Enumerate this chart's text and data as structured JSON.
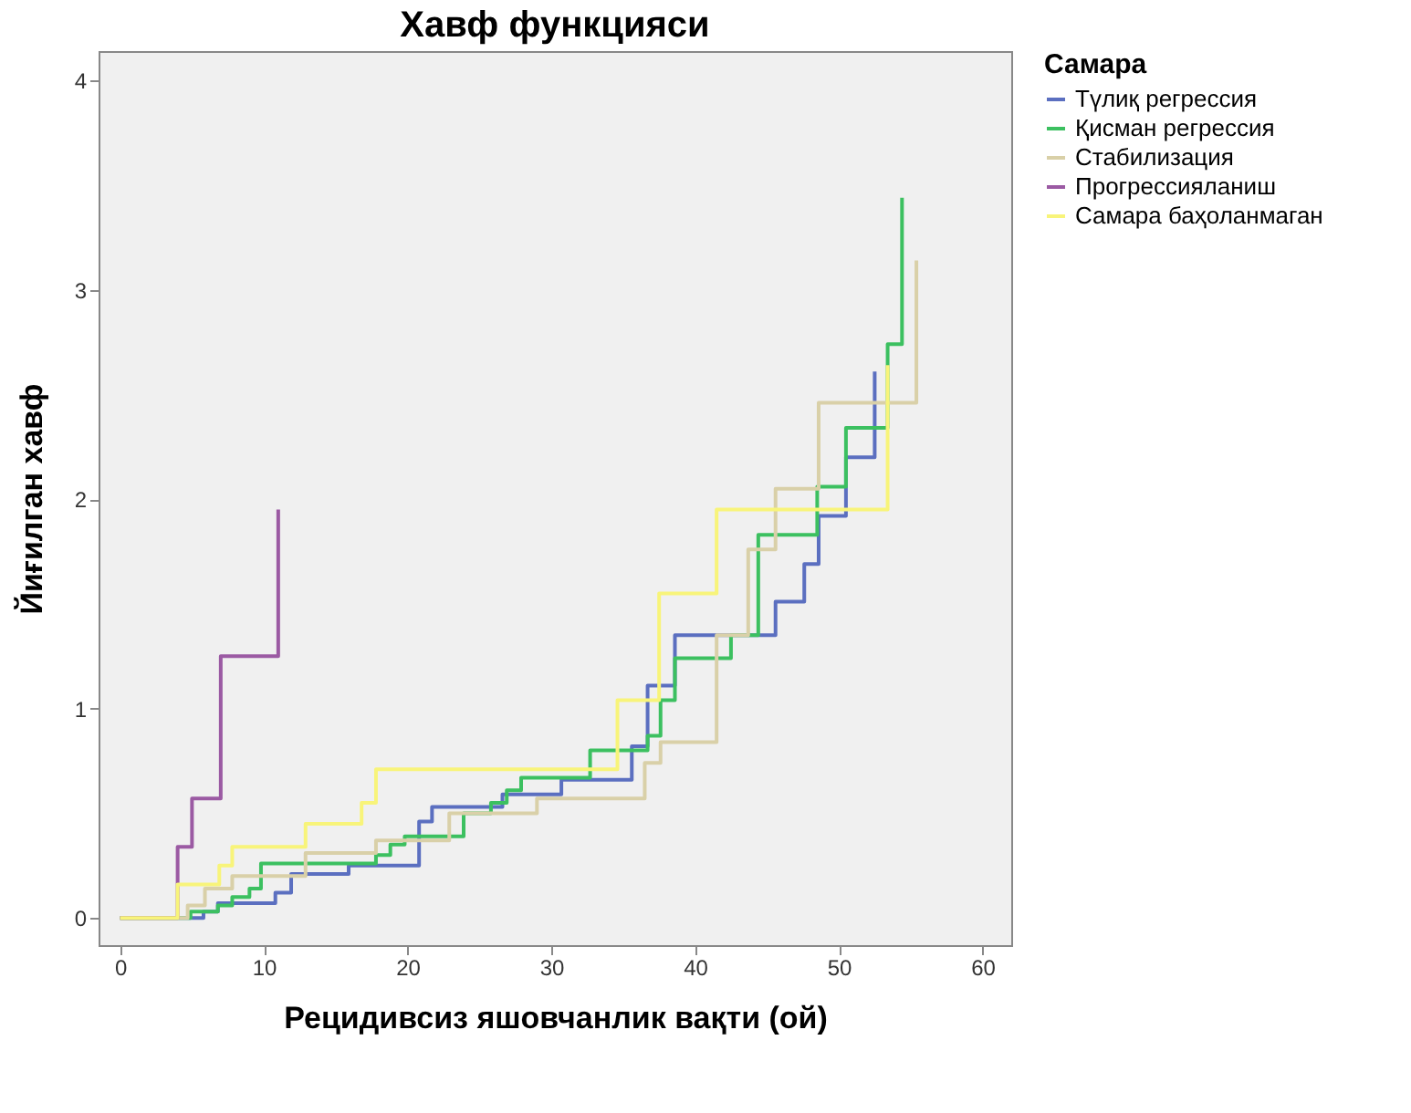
{
  "chart_data": {
    "type": "step",
    "title": "Хавф функцияси",
    "xlabel": "Рецидивсиз яшовчанлик вақти (ой)",
    "ylabel": "Йиғилган хавф",
    "legend_title": "Самара",
    "legend": "right",
    "grid": false,
    "xlim": [
      -1.5,
      62
    ],
    "xticks": [
      0,
      10,
      20,
      30,
      40,
      50,
      60
    ],
    "ylim": [
      -0.13,
      4.14
    ],
    "yticks": [
      0,
      1,
      2,
      3,
      4
    ],
    "series": [
      {
        "name": "Түлиқ регрессия",
        "color": "#5b6fc0",
        "x": [
          0,
          5.8,
          6.8,
          10.8,
          11.9,
          15.9,
          20.8,
          21.7,
          26.6,
          30.7,
          35.6,
          36.7,
          38.6,
          45.6,
          47.6,
          48.6,
          50.5,
          52.5
        ],
        "values": [
          0,
          0.03,
          0.07,
          0.12,
          0.21,
          0.25,
          0.46,
          0.53,
          0.59,
          0.66,
          0.82,
          1.11,
          1.35,
          1.51,
          1.69,
          1.92,
          2.2,
          2.61
        ]
      },
      {
        "name": "Қисман регрессия",
        "color": "#3cc060",
        "x": [
          0,
          4.9,
          6.8,
          7.8,
          9.0,
          9.8,
          17.8,
          18.8,
          19.8,
          23.9,
          25.8,
          26.9,
          27.9,
          32.7,
          36.7,
          37.6,
          38.6,
          42.5,
          44.4,
          48.5,
          50.5,
          53.4,
          54.4
        ],
        "values": [
          0,
          0.03,
          0.06,
          0.1,
          0.14,
          0.26,
          0.3,
          0.35,
          0.39,
          0.5,
          0.55,
          0.61,
          0.67,
          0.8,
          0.87,
          1.04,
          1.24,
          1.35,
          1.83,
          2.06,
          2.34,
          2.74,
          3.44
        ]
      },
      {
        "name": "Стабилизация",
        "color": "#d9d0a8",
        "x": [
          0,
          4.7,
          5.9,
          7.8,
          12.9,
          17.8,
          22.9,
          29.0,
          36.5,
          37.6,
          41.5,
          43.7,
          45.6,
          48.6,
          55.4
        ],
        "values": [
          0,
          0.06,
          0.14,
          0.2,
          0.31,
          0.37,
          0.5,
          0.57,
          0.74,
          0.84,
          1.35,
          1.76,
          2.05,
          2.46,
          3.14
        ]
      },
      {
        "name": "Прогрессияланиш",
        "color": "#9b5aa3",
        "x": [
          0,
          4.0,
          5.0,
          7.0,
          11.0
        ],
        "values": [
          0,
          0.34,
          0.57,
          1.25,
          1.95
        ]
      },
      {
        "name": "Самара баҳоланмаган",
        "color": "#f8f47a",
        "x": [
          0,
          4.0,
          6.9,
          7.8,
          12.9,
          16.8,
          17.8,
          34.6,
          37.5,
          41.5,
          53.4
        ],
        "values": [
          0,
          0.16,
          0.25,
          0.34,
          0.45,
          0.55,
          0.71,
          1.04,
          1.55,
          1.95,
          2.64
        ]
      }
    ]
  }
}
